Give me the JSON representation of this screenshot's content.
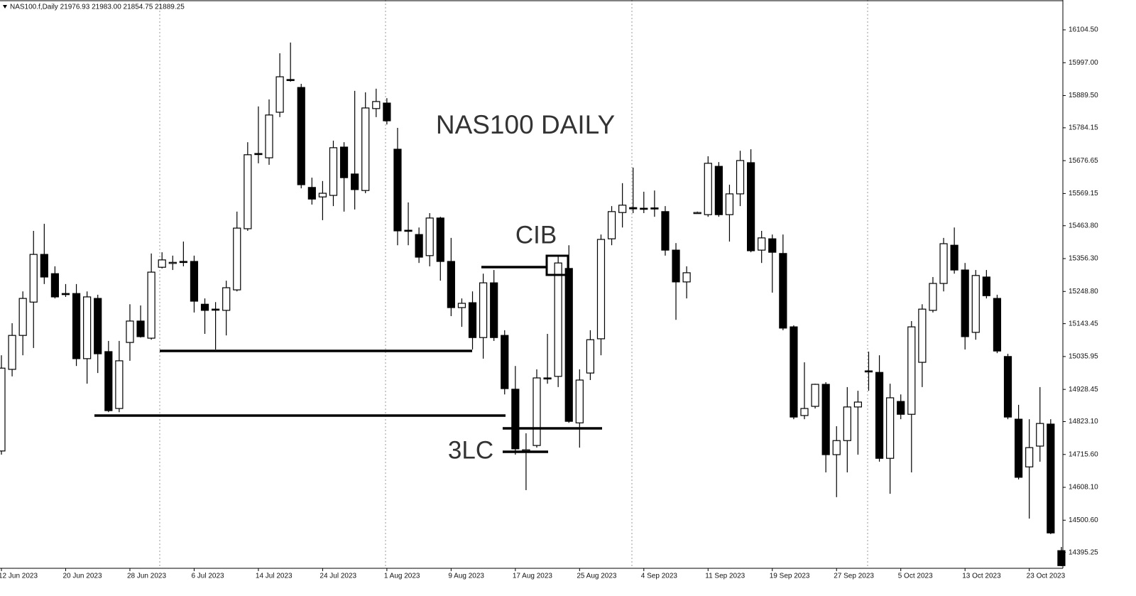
{
  "chart_data": {
    "type": "candlestick",
    "header": "NAS100.f,Daily  21976.93 21983.00 21854.75 21889.25",
    "annotations": [
      "NAS100 DAILY",
      "CIB",
      "3LC"
    ],
    "up_color": "#ffffff",
    "down_color": "#000000",
    "categories": [
      "12 Jun 2023",
      null,
      null,
      null,
      null,
      null,
      "20 Jun 2023",
      null,
      null,
      null,
      null,
      null,
      "28 Jun 2023",
      null,
      null,
      null,
      null,
      null,
      "6 Jul 2023",
      null,
      null,
      null,
      null,
      null,
      "14 Jul 2023",
      null,
      null,
      null,
      null,
      null,
      "24 Jul 2023",
      null,
      null,
      null,
      null,
      null,
      "1 Aug 2023",
      null,
      null,
      null,
      null,
      null,
      "9 Aug 2023",
      null,
      null,
      null,
      null,
      null,
      "17 Aug 2023",
      null,
      null,
      null,
      null,
      null,
      "25 Aug 2023",
      null,
      null,
      null,
      null,
      null,
      "4 Sep 2023",
      null,
      null,
      null,
      null,
      null,
      "11 Sep 2023",
      null,
      null,
      null,
      null,
      null,
      "19 Sep 2023",
      null,
      null,
      null,
      null,
      null,
      "27 Sep 2023",
      null,
      null,
      null,
      null,
      null,
      "5 Oct 2023",
      null,
      null,
      null,
      null,
      null,
      "13 Oct 2023",
      null,
      null,
      null,
      null,
      null,
      "23 Oct 2023",
      null,
      null,
      null
    ],
    "open": [
      14727,
      14994,
      15105,
      15214,
      15370,
      15307,
      15242,
      15242,
      15029,
      15226,
      15052,
      14866,
      15082,
      15152,
      15096,
      15328,
      15342,
      15347,
      15347,
      15207,
      15191,
      15187,
      15254,
      15454,
      15700,
      15686,
      15835,
      15942,
      15916,
      15589,
      15558,
      15563,
      15721,
      15633,
      15579,
      15847,
      15865,
      15714,
      15449,
      15435,
      15366,
      15489,
      15347,
      15196,
      15212,
      15098,
      15277,
      15105,
      14929,
      14729,
      14745,
      14966,
      14971,
      15324,
      14819,
      14982,
      15094,
      15421,
      15507,
      15523,
      15521,
      15522,
      15510,
      15384,
      15280,
      15507,
      15500,
      15658,
      15500,
      15568,
      15670,
      15384,
      15421,
      15373,
      15133,
      14843,
      14873,
      14945,
      14715,
      14761,
      14871,
      14989,
      14984,
      14703,
      14889,
      14847,
      15017,
      15187,
      15275,
      15400,
      15319,
      15115,
      15296,
      15226,
      15036,
      14831,
      14675,
      14743,
      14815,
      14401
    ],
    "high": [
      15040,
      15145,
      15249,
      15447,
      15470,
      15331,
      15273,
      15273,
      15249,
      15238,
      15087,
      15087,
      15207,
      15203,
      15373,
      15377,
      15366,
      15412,
      15366,
      15226,
      15214,
      15284,
      15510,
      15737,
      15854,
      15877,
      16028,
      16063,
      15928,
      15621,
      15610,
      15742,
      15737,
      15905,
      15900,
      15912,
      15881,
      15784,
      15540,
      15458,
      15505,
      15493,
      15424,
      15226,
      15249,
      15307,
      15319,
      15122,
      15005,
      14785,
      14994,
      15110,
      15366,
      15400,
      14994,
      15122,
      15435,
      15528,
      15603,
      15654,
      15575,
      15579,
      15528,
      15407,
      15331,
      15510,
      15691,
      15672,
      15598,
      15709,
      15714,
      15447,
      15435,
      15435,
      15138,
      15017,
      14947,
      14952,
      14808,
      14936,
      14924,
      15052,
      15040,
      14947,
      14912,
      15152,
      15207,
      15296,
      15424,
      15458,
      15342,
      15319,
      15319,
      15238,
      15045,
      14878,
      14831,
      14936,
      14831,
      14413
    ],
    "low": [
      14715,
      14971,
      15040,
      15064,
      15273,
      15226,
      15231,
      15005,
      14947,
      14982,
      14854,
      14854,
      15022,
      15098,
      15091,
      15324,
      15319,
      15331,
      15180,
      15110,
      15059,
      15105,
      15249,
      15447,
      15668,
      15663,
      15819,
      15935,
      15586,
      15533,
      15482,
      15528,
      15510,
      15517,
      15570,
      15819,
      15795,
      15400,
      15400,
      15342,
      15331,
      15284,
      15168,
      15133,
      15059,
      15029,
      15087,
      14912,
      14715,
      14599,
      14738,
      14947,
      14936,
      14819,
      14738,
      14959,
      15040,
      15400,
      15458,
      15505,
      15505,
      15493,
      15366,
      15156,
      15226,
      15505,
      15493,
      15493,
      15412,
      15528,
      15377,
      15342,
      15245,
      15122,
      14831,
      14831,
      14866,
      14657,
      14576,
      14657,
      14715,
      14924,
      14692,
      14587,
      14831,
      14657,
      14936,
      15180,
      15249,
      15307,
      15059,
      15091,
      15226,
      15047,
      14831,
      14634,
      14506,
      14692,
      14455,
      14350
    ],
    "close": [
      14998,
      15105,
      15226,
      15370,
      15296,
      15231,
      15240,
      15029,
      15231,
      15045,
      14859,
      15022,
      15152,
      15101,
      15312,
      15352,
      15344,
      15345,
      15217,
      15187,
      15189,
      15261,
      15456,
      15696,
      15698,
      15826,
      15951,
      15940,
      15598,
      15551,
      15570,
      15719,
      15621,
      15582,
      15849,
      15870,
      15807,
      15447,
      15447,
      15361,
      15489,
      15347,
      15196,
      15210,
      15098,
      15277,
      15098,
      14931,
      14734,
      14731,
      14966,
      14964,
      15342,
      14824,
      14959,
      15091,
      15419,
      15510,
      15531,
      15519,
      15520,
      15520,
      15384,
      15280,
      15310,
      15507,
      15668,
      15500,
      15568,
      15677,
      15382,
      15424,
      15377,
      15129,
      14838,
      14866,
      14945,
      14715,
      14761,
      14871,
      14887,
      14987,
      14703,
      14901,
      14847,
      15133,
      15191,
      15275,
      15405,
      15319,
      15101,
      15301,
      15235,
      15054,
      14838,
      14641,
      14738,
      14817,
      14459,
      14352
    ],
    "ylim": [
      14343.3,
      16202.1
    ],
    "yticks": [
      {
        "value": 16104.5,
        "label": "16104.50"
      },
      {
        "value": 15997,
        "label": "15997.00"
      },
      {
        "value": 15889.5,
        "label": "15889.50"
      },
      15784.15,
      15676.65,
      15569.15,
      {
        "value": 15463.8,
        "label": "15463.80"
      },
      {
        "value": 15356.3,
        "label": "15356.30"
      },
      {
        "value": 15248.8,
        "label": "15248.80"
      },
      15143.45,
      15035.95,
      14928.45,
      {
        "value": 14823.1,
        "label": "14823.10"
      },
      {
        "value": 14715.6,
        "label": "14715.60"
      },
      {
        "value": 14608.1,
        "label": "14608.10"
      },
      {
        "value": 14500.6,
        "label": "14500.60"
      },
      14395.25
    ]
  }
}
